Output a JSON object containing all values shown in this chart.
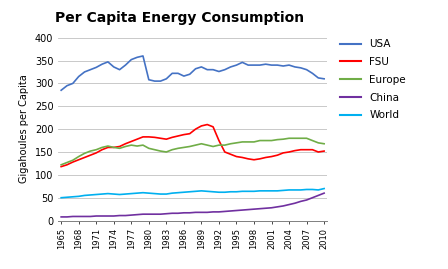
{
  "title": "Per Capita Energy Consumption",
  "ylabel": "Gigahoules per Capita",
  "years": [
    1965,
    1966,
    1967,
    1968,
    1969,
    1970,
    1971,
    1972,
    1973,
    1974,
    1975,
    1976,
    1977,
    1978,
    1979,
    1980,
    1981,
    1982,
    1983,
    1984,
    1985,
    1986,
    1987,
    1988,
    1989,
    1990,
    1991,
    1992,
    1993,
    1994,
    1995,
    1996,
    1997,
    1998,
    1999,
    2000,
    2001,
    2002,
    2003,
    2004,
    2005,
    2006,
    2007,
    2008,
    2009,
    2010
  ],
  "USA": [
    285,
    295,
    300,
    315,
    325,
    330,
    335,
    342,
    347,
    336,
    330,
    340,
    352,
    357,
    360,
    308,
    305,
    305,
    310,
    322,
    322,
    316,
    320,
    332,
    336,
    330,
    330,
    326,
    330,
    336,
    340,
    346,
    340,
    340,
    340,
    342,
    340,
    340,
    338,
    340,
    336,
    334,
    330,
    322,
    312,
    310
  ],
  "FSU": [
    118,
    122,
    128,
    133,
    138,
    143,
    148,
    155,
    160,
    160,
    162,
    168,
    173,
    178,
    183,
    183,
    182,
    180,
    178,
    182,
    185,
    188,
    190,
    200,
    207,
    210,
    205,
    175,
    150,
    145,
    140,
    138,
    135,
    133,
    135,
    138,
    140,
    143,
    148,
    150,
    153,
    155,
    155,
    155,
    150,
    152
  ],
  "Europe": [
    122,
    127,
    132,
    140,
    147,
    152,
    155,
    160,
    163,
    160,
    158,
    162,
    165,
    163,
    165,
    158,
    155,
    152,
    150,
    155,
    158,
    160,
    162,
    165,
    168,
    165,
    162,
    165,
    165,
    168,
    170,
    172,
    172,
    172,
    175,
    175,
    175,
    177,
    178,
    180,
    180,
    180,
    180,
    175,
    170,
    168
  ],
  "China": [
    8,
    8,
    9,
    9,
    9,
    9,
    10,
    10,
    10,
    10,
    11,
    11,
    12,
    13,
    14,
    14,
    14,
    14,
    15,
    16,
    16,
    17,
    17,
    18,
    18,
    18,
    19,
    19,
    20,
    21,
    22,
    23,
    24,
    25,
    26,
    27,
    28,
    30,
    32,
    35,
    38,
    42,
    45,
    50,
    55,
    60
  ],
  "World": [
    50,
    51,
    52,
    53,
    55,
    56,
    57,
    58,
    59,
    58,
    57,
    58,
    59,
    60,
    61,
    60,
    59,
    58,
    58,
    60,
    61,
    62,
    63,
    64,
    65,
    64,
    63,
    62,
    62,
    63,
    63,
    64,
    64,
    64,
    65,
    65,
    65,
    65,
    66,
    67,
    67,
    67,
    68,
    68,
    67,
    70
  ],
  "colors": {
    "USA": "#4472C4",
    "FSU": "#FF0000",
    "Europe": "#70AD47",
    "China": "#7030A0",
    "World": "#00B0F0"
  },
  "ylim": [
    0,
    400
  ],
  "yticks": [
    0,
    50,
    100,
    150,
    200,
    250,
    300,
    350,
    400
  ],
  "xtick_start": 1965,
  "xtick_end": 2011,
  "xtick_step": 3,
  "legend_labels": [
    "USA",
    "FSU",
    "Europe",
    "China",
    "World"
  ],
  "background_color": "#FFFFFF",
  "figwidth": 4.48,
  "figheight": 2.69,
  "dpi": 100
}
